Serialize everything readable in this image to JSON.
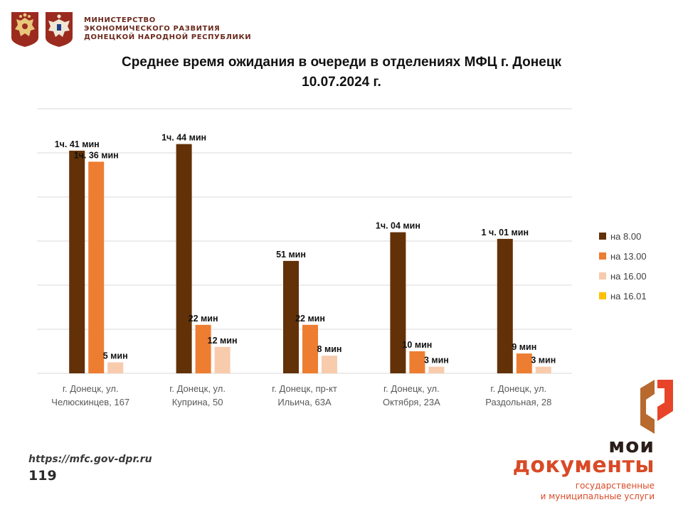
{
  "header": {
    "ministry_lines": [
      "МИНИСТЕРСТВО",
      "ЭКОНОМИЧЕСКОГО РАЗВИТИЯ",
      "ДОНЕЦКОЙ НАРОДНОЙ РЕСПУБЛИКИ"
    ],
    "emblem_icons": [
      "russia-coat-of-arms",
      "dpr-coat-of-arms"
    ]
  },
  "title_lines": [
    "Среднее время ожидания в очереди в отделениях МФЦ г. Донецк",
    "10.07.2024 г."
  ],
  "colors": {
    "s1": "#633107",
    "s2": "#ED7D31",
    "s3": "#F8CBAD",
    "s4": "#FFC000",
    "grid": "#d9d9d9",
    "brand_orange": "#d94a26",
    "brand_dark": "#2b1e1a",
    "header_maroon": "#6b2a1e"
  },
  "chart_data": {
    "type": "bar",
    "title": "Среднее время ожидания в очереди в отделениях МФЦ г. Донецк 10.07.2024 г.",
    "categories": [
      [
        "г. Донецк, ул.",
        "Челюскинцев, 167"
      ],
      [
        "г. Донецк, ул.",
        "Куприна, 50"
      ],
      [
        "г. Донецк, пр-кт",
        "Ильича, 63А"
      ],
      [
        "г. Донецк, ул.",
        "Октября, 23А"
      ],
      [
        "г. Донецк, ул.",
        "Раздольная, 28"
      ]
    ],
    "unit": "min",
    "ylim": [
      0,
      120
    ],
    "grid": true,
    "legend_position": "right",
    "series": [
      {
        "name": "на 8.00",
        "values": [
          101,
          104,
          51,
          64,
          61
        ],
        "labels": [
          "1ч. 41 мин",
          "1ч. 44 мин",
          "51 мин",
          "1ч. 04 мин",
          "1 ч. 01 мин"
        ]
      },
      {
        "name": "на 13.00",
        "values": [
          96,
          22,
          22,
          10,
          9
        ],
        "labels": [
          "1ч. 36 мин",
          "22 мин",
          "22 мин",
          "10 мин",
          "9 мин"
        ]
      },
      {
        "name": "на 16.00",
        "values": [
          5,
          12,
          8,
          3,
          3
        ],
        "labels": [
          "5 мин",
          "12 мин",
          "8 мин",
          "3 мин",
          "3 мин"
        ]
      },
      {
        "name": "на 16.01",
        "values": [
          null,
          null,
          null,
          null,
          null
        ],
        "labels": []
      }
    ]
  },
  "footer": {
    "url": "https://mfc.gov-dpr.ru",
    "page_number": "119"
  },
  "brand": {
    "line1": "мои",
    "line2": "документы",
    "sub_lines": [
      "государственные",
      "и муниципальные услуги"
    ]
  }
}
